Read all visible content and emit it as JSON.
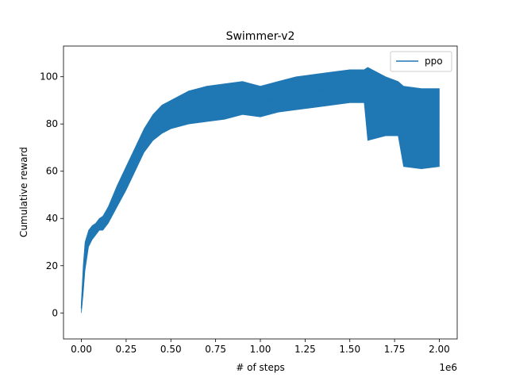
{
  "chart_data": {
    "type": "line",
    "title": "Swimmer-v2",
    "xlabel": "# of steps",
    "ylabel": "Cumulative reward",
    "x_offset_label": "1e6",
    "xlim": [
      -0.1,
      2.1
    ],
    "ylim": [
      -11,
      113
    ],
    "x_ticks": [
      0.0,
      0.25,
      0.5,
      0.75,
      1.0,
      1.25,
      1.5,
      1.75,
      2.0
    ],
    "x_tick_labels": [
      "0.00",
      "0.25",
      "0.50",
      "0.75",
      "1.00",
      "1.25",
      "1.50",
      "1.75",
      "2.00"
    ],
    "y_ticks": [
      0,
      20,
      40,
      60,
      80,
      100
    ],
    "y_tick_labels": [
      "0",
      "20",
      "40",
      "60",
      "80",
      "100"
    ],
    "grid": false,
    "legend_position": "top-right",
    "series": [
      {
        "name": "ppo",
        "color": "#1f77b4",
        "x": [
          0.0,
          0.01,
          0.02,
          0.04,
          0.06,
          0.08,
          0.1,
          0.12,
          0.15,
          0.2,
          0.25,
          0.3,
          0.35,
          0.4,
          0.45,
          0.5,
          0.6,
          0.7,
          0.8,
          0.9,
          1.0,
          1.1,
          1.2,
          1.3,
          1.4,
          1.5,
          1.58,
          1.6,
          1.7,
          1.77,
          1.8,
          1.9,
          2.0
        ],
        "lower": [
          0,
          8,
          18,
          28,
          31,
          33,
          35,
          35,
          38,
          45,
          52,
          60,
          68,
          73,
          76,
          78,
          80,
          81,
          82,
          84,
          83,
          85,
          86,
          87,
          88,
          89,
          89,
          73,
          75,
          75,
          62,
          61,
          62
        ],
        "upper": [
          5,
          20,
          30,
          35,
          37,
          38,
          40,
          41,
          45,
          54,
          62,
          70,
          78,
          84,
          88,
          90,
          94,
          96,
          97,
          98,
          96,
          98,
          100,
          101,
          102,
          103,
          103,
          104,
          100,
          98,
          96,
          95,
          95
        ],
        "mean": [
          2,
          14,
          24,
          32,
          34,
          36,
          38,
          38,
          42,
          50,
          57,
          65,
          73,
          79,
          82,
          84,
          87,
          88,
          89,
          91,
          89,
          91,
          93,
          94,
          95,
          96,
          96,
          88,
          87,
          86,
          79,
          78,
          78
        ]
      }
    ]
  }
}
